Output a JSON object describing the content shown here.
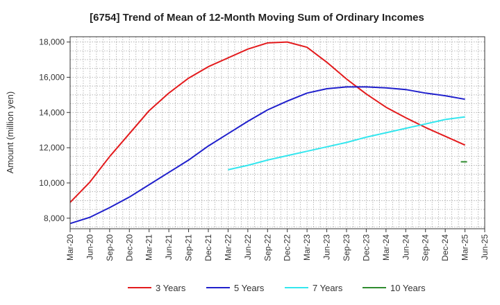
{
  "chart_data": {
    "type": "line",
    "title": "[6754]  Trend of Mean of 12-Month Moving Sum of Ordinary Incomes",
    "xlabel": "",
    "ylabel": "Amount (million yen)",
    "ylim": [
      7400,
      18300
    ],
    "yticks": [
      8000,
      10000,
      12000,
      14000,
      16000,
      18000
    ],
    "ytick_labels": [
      "8,000",
      "10,000",
      "12,000",
      "14,000",
      "16,000",
      "18,000"
    ],
    "xticks": [
      "Mar-20",
      "Jun-20",
      "Sep-20",
      "Dec-20",
      "Mar-21",
      "Jun-21",
      "Sep-21",
      "Dec-21",
      "Mar-22",
      "Jun-22",
      "Sep-22",
      "Dec-22",
      "Mar-23",
      "Jun-23",
      "Sep-23",
      "Dec-23",
      "Mar-24",
      "Jun-24",
      "Sep-24",
      "Dec-24",
      "Mar-25",
      "Jun-25"
    ],
    "grid": true,
    "legend_position": "bottom",
    "series": [
      {
        "name": "3 Years",
        "color": "#e31a1c",
        "start_index": 0,
        "values": [
          8900,
          10050,
          11500,
          12800,
          14100,
          15100,
          15950,
          16600,
          17100,
          17600,
          17950,
          18000,
          17700,
          16850,
          15900,
          15050,
          14300,
          13700,
          13150,
          12650,
          12150
        ]
      },
      {
        "name": "5 Years",
        "color": "#1f1fcc",
        "start_index": 0,
        "values": [
          7700,
          8050,
          8600,
          9200,
          9900,
          10600,
          11300,
          12100,
          12800,
          13500,
          14150,
          14650,
          15100,
          15350,
          15450,
          15450,
          15400,
          15300,
          15100,
          14950,
          14750
        ]
      },
      {
        "name": "7 Years",
        "color": "#33e6ee",
        "start_index": 8,
        "values": [
          10750,
          11000,
          11300,
          11550,
          11800,
          12050,
          12300,
          12600,
          12850,
          13100,
          13350,
          13600,
          13750
        ]
      },
      {
        "name": "10 Years",
        "color": "#2e8b2e",
        "start_index": 20,
        "values": [
          11200
        ]
      }
    ]
  }
}
